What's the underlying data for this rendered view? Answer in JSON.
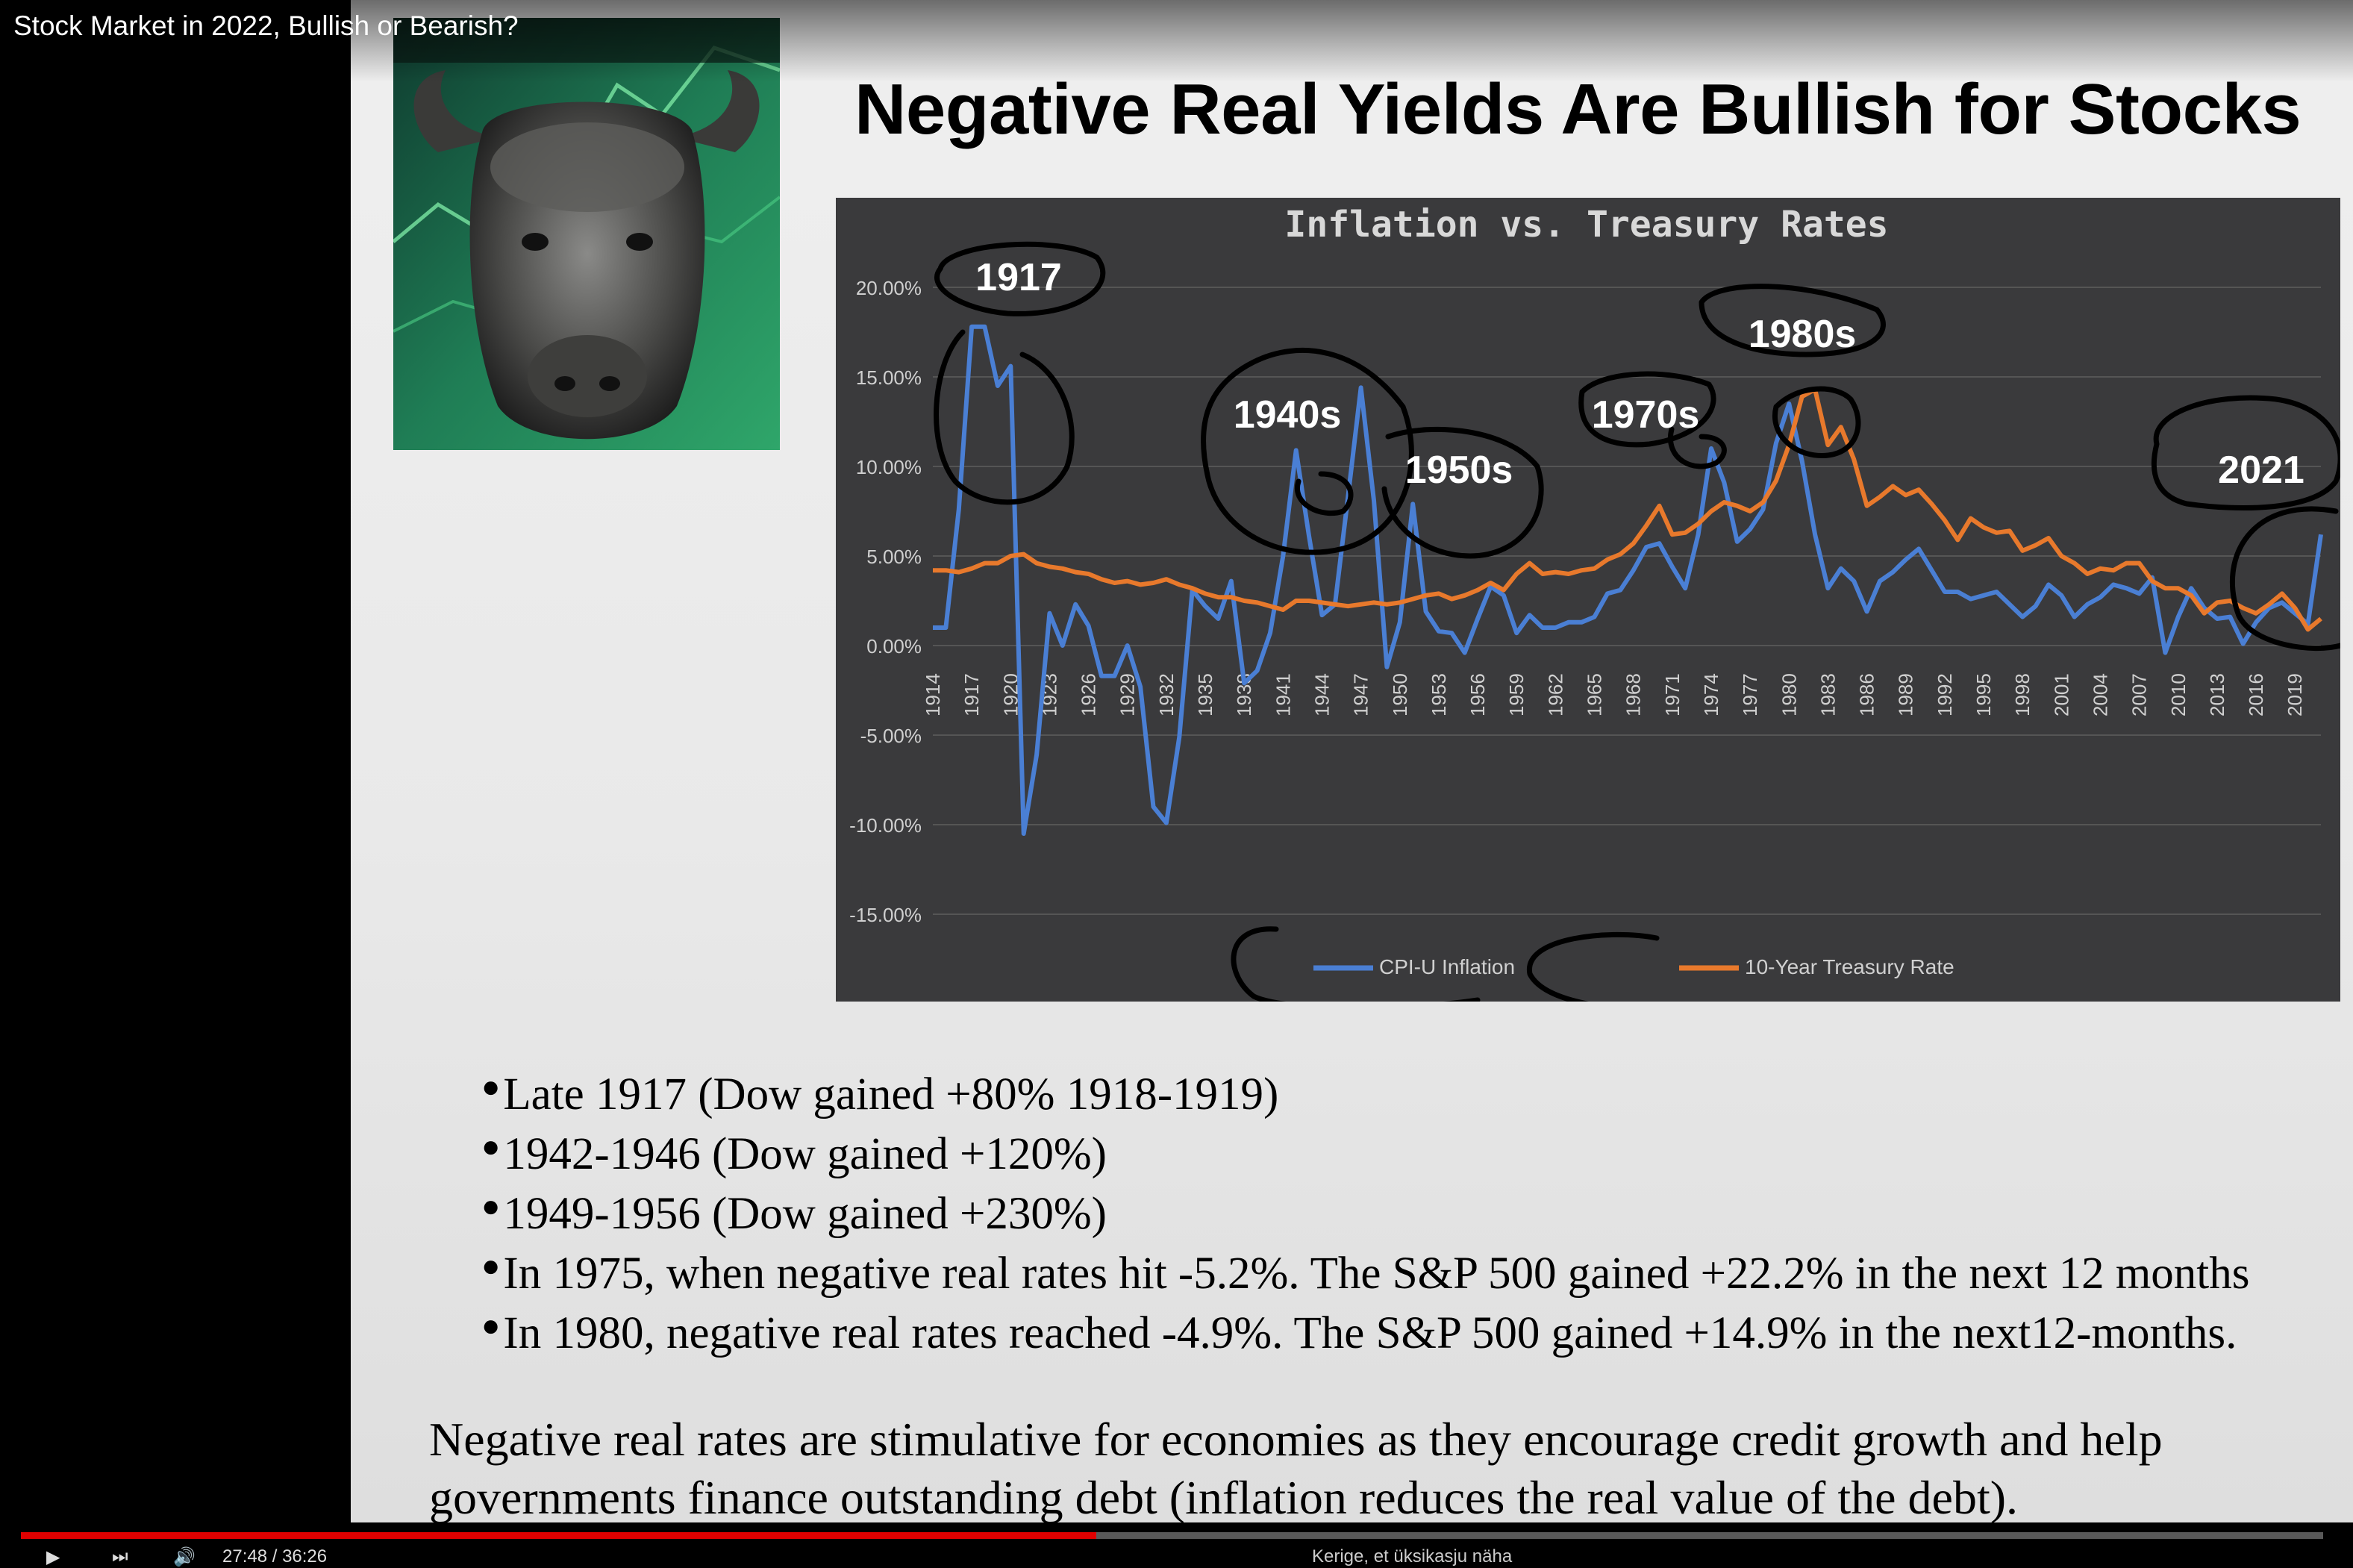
{
  "video": {
    "title": "Stock Market in 2022, Bullish or Bearish?",
    "time_display": "27:48 / 36:26",
    "progress_fraction": 0.467,
    "hint": "Kerige, et üksikasju näha",
    "progress_color": "#e00000"
  },
  "slide": {
    "title": "Negative Real Yields Are Bullish for Stocks",
    "image_icon": "bull-statue-image",
    "bullets": [
      "Late 1917 (Dow gained +80% 1918-1919)",
      "1942-1946 (Dow gained +120%)",
      "1949-1956 (Dow gained +230%)",
      "In 1975, when negative real rates hit -5.2%. The S&P 500 gained +22.2% in the next 12 months",
      "In 1980, negative real rates reached -4.9%. The S&P 500 gained +14.9% in the next12-months."
    ],
    "summary": "Negative real rates are stimulative for economies as they encourage credit growth and help governments finance outstanding debt (inflation reduces the real value of the debt).",
    "annotations": [
      "1917",
      "1940s",
      "1950s",
      "1970s",
      "1980s",
      "2021"
    ]
  },
  "chart_data": {
    "type": "line",
    "title": "Inflation vs. Treasury Rates",
    "xlabel": "",
    "ylabel": "",
    "ylim": [
      -0.15,
      0.2
    ],
    "y_ticks": [
      "20.00%",
      "15.00%",
      "10.00%",
      "5.00%",
      "0.00%",
      "-5.00%",
      "-10.00%",
      "-15.00%"
    ],
    "x_tick_labels": [
      "1914",
      "1917",
      "1920",
      "1923",
      "1926",
      "1929",
      "1932",
      "1935",
      "1938",
      "1941",
      "1944",
      "1947",
      "1950",
      "1953",
      "1956",
      "1959",
      "1962",
      "1965",
      "1968",
      "1971",
      "1974",
      "1977",
      "1980",
      "1983",
      "1986",
      "1989",
      "1992",
      "1995",
      "1998",
      "2001",
      "2004",
      "2007",
      "2010",
      "2013",
      "2016",
      "2019"
    ],
    "grid": true,
    "legend_position": "bottom",
    "background": "#3a3a3c",
    "series": [
      {
        "name": "CPI-U Inflation",
        "color": "#4a7fd4",
        "x": [
          1914,
          1915,
          1916,
          1917,
          1918,
          1919,
          1920,
          1921,
          1922,
          1923,
          1924,
          1925,
          1926,
          1927,
          1928,
          1929,
          1930,
          1931,
          1932,
          1933,
          1934,
          1935,
          1936,
          1937,
          1938,
          1939,
          1940,
          1941,
          1942,
          1943,
          1944,
          1945,
          1946,
          1947,
          1948,
          1949,
          1950,
          1951,
          1952,
          1953,
          1954,
          1955,
          1956,
          1957,
          1958,
          1959,
          1960,
          1961,
          1962,
          1963,
          1964,
          1965,
          1966,
          1967,
          1968,
          1969,
          1970,
          1971,
          1972,
          1973,
          1974,
          1975,
          1976,
          1977,
          1978,
          1979,
          1980,
          1981,
          1982,
          1983,
          1984,
          1985,
          1986,
          1987,
          1988,
          1989,
          1990,
          1991,
          1992,
          1993,
          1994,
          1995,
          1996,
          1997,
          1998,
          1999,
          2000,
          2001,
          2002,
          2003,
          2004,
          2005,
          2006,
          2007,
          2008,
          2009,
          2010,
          2011,
          2012,
          2013,
          2014,
          2015,
          2016,
          2017,
          2018,
          2019,
          2020,
          2021
        ],
        "values": [
          0.01,
          0.01,
          0.076,
          0.178,
          0.178,
          0.145,
          0.156,
          -0.105,
          -0.061,
          0.018,
          0.0,
          0.023,
          0.011,
          -0.017,
          -0.017,
          0.0,
          -0.023,
          -0.09,
          -0.099,
          -0.051,
          0.031,
          0.022,
          0.015,
          0.036,
          -0.021,
          -0.014,
          0.007,
          0.05,
          0.109,
          0.061,
          0.017,
          0.023,
          0.083,
          0.144,
          0.081,
          -0.012,
          0.013,
          0.079,
          0.019,
          0.008,
          0.007,
          -0.004,
          0.015,
          0.033,
          0.028,
          0.007,
          0.017,
          0.01,
          0.01,
          0.013,
          0.013,
          0.016,
          0.029,
          0.031,
          0.042,
          0.055,
          0.057,
          0.044,
          0.032,
          0.062,
          0.11,
          0.091,
          0.058,
          0.065,
          0.076,
          0.113,
          0.135,
          0.103,
          0.062,
          0.032,
          0.043,
          0.036,
          0.019,
          0.036,
          0.041,
          0.048,
          0.054,
          0.042,
          0.03,
          0.03,
          0.026,
          0.028,
          0.03,
          0.023,
          0.016,
          0.022,
          0.034,
          0.028,
          0.016,
          0.023,
          0.027,
          0.034,
          0.032,
          0.029,
          0.038,
          -0.004,
          0.016,
          0.032,
          0.021,
          0.015,
          0.016,
          0.001,
          0.013,
          0.021,
          0.024,
          0.018,
          0.012,
          0.062
        ]
      },
      {
        "name": "10-Year Treasury Rate",
        "color": "#e8792c",
        "x": [
          1914,
          1915,
          1916,
          1917,
          1918,
          1919,
          1920,
          1921,
          1922,
          1923,
          1924,
          1925,
          1926,
          1927,
          1928,
          1929,
          1930,
          1931,
          1932,
          1933,
          1934,
          1935,
          1936,
          1937,
          1938,
          1939,
          1940,
          1941,
          1942,
          1943,
          1944,
          1945,
          1946,
          1947,
          1948,
          1949,
          1950,
          1951,
          1952,
          1953,
          1954,
          1955,
          1956,
          1957,
          1958,
          1959,
          1960,
          1961,
          1962,
          1963,
          1964,
          1965,
          1966,
          1967,
          1968,
          1969,
          1970,
          1971,
          1972,
          1973,
          1974,
          1975,
          1976,
          1977,
          1978,
          1979,
          1980,
          1981,
          1982,
          1983,
          1984,
          1985,
          1986,
          1987,
          1988,
          1989,
          1990,
          1991,
          1992,
          1993,
          1994,
          1995,
          1996,
          1997,
          1998,
          1999,
          2000,
          2001,
          2002,
          2003,
          2004,
          2005,
          2006,
          2007,
          2008,
          2009,
          2010,
          2011,
          2012,
          2013,
          2014,
          2015,
          2016,
          2017,
          2018,
          2019,
          2020,
          2021
        ],
        "values": [
          0.042,
          0.042,
          0.041,
          0.043,
          0.046,
          0.046,
          0.05,
          0.051,
          0.046,
          0.044,
          0.043,
          0.041,
          0.04,
          0.037,
          0.035,
          0.036,
          0.034,
          0.035,
          0.037,
          0.034,
          0.032,
          0.029,
          0.027,
          0.027,
          0.025,
          0.024,
          0.022,
          0.02,
          0.025,
          0.025,
          0.024,
          0.023,
          0.022,
          0.023,
          0.024,
          0.023,
          0.024,
          0.026,
          0.028,
          0.029,
          0.026,
          0.028,
          0.031,
          0.035,
          0.031,
          0.04,
          0.046,
          0.04,
          0.041,
          0.04,
          0.042,
          0.043,
          0.048,
          0.051,
          0.057,
          0.067,
          0.078,
          0.062,
          0.063,
          0.068,
          0.075,
          0.08,
          0.078,
          0.075,
          0.08,
          0.092,
          0.112,
          0.139,
          0.143,
          0.112,
          0.122,
          0.104,
          0.078,
          0.083,
          0.089,
          0.084,
          0.087,
          0.079,
          0.07,
          0.059,
          0.071,
          0.066,
          0.063,
          0.064,
          0.053,
          0.056,
          0.06,
          0.05,
          0.046,
          0.04,
          0.043,
          0.042,
          0.046,
          0.046,
          0.036,
          0.032,
          0.032,
          0.028,
          0.018,
          0.024,
          0.025,
          0.021,
          0.018,
          0.023,
          0.029,
          0.021,
          0.009,
          0.015
        ]
      }
    ]
  }
}
